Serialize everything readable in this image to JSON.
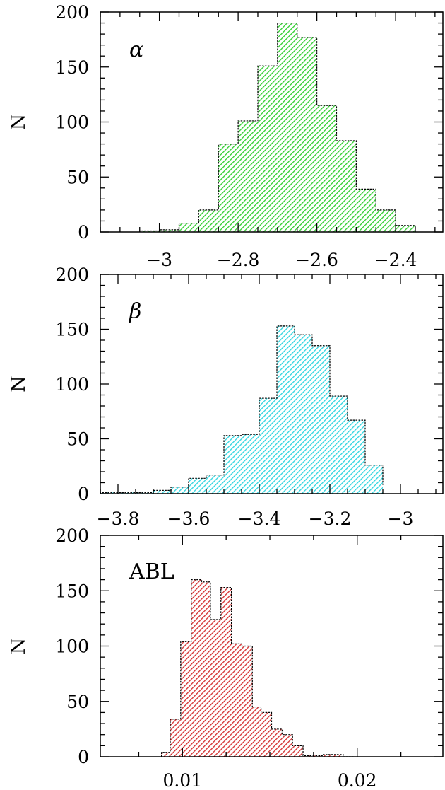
{
  "chart_data": [
    {
      "type": "bar",
      "label": "α",
      "ylabel": "N",
      "xlim": [
        -3.15,
        -2.28
      ],
      "ylim": [
        0,
        200
      ],
      "xticks": [
        -3,
        -2.8,
        -2.6,
        -2.4
      ],
      "xticklabels": [
        "−3",
        "−2.8",
        "−2.6",
        "−2.4"
      ],
      "yticks": [
        0,
        50,
        100,
        150,
        200
      ],
      "yticklabels": [
        "0",
        "50",
        "100",
        "150",
        "200"
      ],
      "color": "#2ecf2e",
      "bin_edges": [
        -3.05,
        -3.0,
        -2.95,
        -2.9,
        -2.85,
        -2.8,
        -2.75,
        -2.7,
        -2.65,
        -2.6,
        -2.55,
        -2.5,
        -2.45,
        -2.4,
        -2.35
      ],
      "counts": [
        1,
        2,
        8,
        20,
        80,
        101,
        151,
        190,
        177,
        115,
        83,
        39,
        20,
        6,
        3
      ]
    },
    {
      "type": "bar",
      "label": "β",
      "ylabel": "N",
      "xlim": [
        -3.85,
        -2.88
      ],
      "ylim": [
        0,
        200
      ],
      "xticks": [
        -3.8,
        -3.6,
        -3.4,
        -3.2,
        -3.0
      ],
      "xticklabels": [
        "−3.8",
        "−3.6",
        "−3.4",
        "−3.2",
        "−3"
      ],
      "yticks": [
        0,
        50,
        100,
        150,
        200
      ],
      "yticklabels": [
        "0",
        "50",
        "100",
        "150",
        "200"
      ],
      "color": "#2ed6df",
      "bin_edges": [
        -3.85,
        -3.7,
        -3.65,
        -3.6,
        -3.55,
        -3.5,
        -3.45,
        -3.4,
        -3.35,
        -3.3,
        -3.25,
        -3.2,
        -3.15,
        -3.1,
        -3.05
      ],
      "counts": [
        1,
        3,
        6,
        14,
        17,
        53,
        54,
        87,
        153,
        145,
        135,
        89,
        67,
        26,
        8
      ]
    },
    {
      "type": "bar",
      "label": "ABL",
      "ylabel": "N",
      "xlim": [
        0.0053,
        0.0249
      ],
      "ylim": [
        0,
        200
      ],
      "xticks": [
        0.01,
        0.02
      ],
      "xticklabels": [
        "0.01",
        "0.02"
      ],
      "yticks": [
        0,
        50,
        100,
        150,
        200
      ],
      "yticklabels": [
        "0",
        "50",
        "100",
        "150",
        "200"
      ],
      "color": "#d42f2f",
      "bin_edges": [
        0.0088,
        0.0093,
        0.0099,
        0.0105,
        0.0111,
        0.0116,
        0.0122,
        0.0128,
        0.0134,
        0.014,
        0.0145,
        0.0151,
        0.0157,
        0.0163,
        0.0169,
        0.0174,
        0.018,
        0.0186,
        0.0192,
        0.0198
      ],
      "counts": [
        4,
        34,
        104,
        160,
        158,
        124,
        153,
        102,
        100,
        45,
        40,
        25,
        20,
        10,
        1,
        1,
        2,
        2,
        0
      ]
    }
  ]
}
